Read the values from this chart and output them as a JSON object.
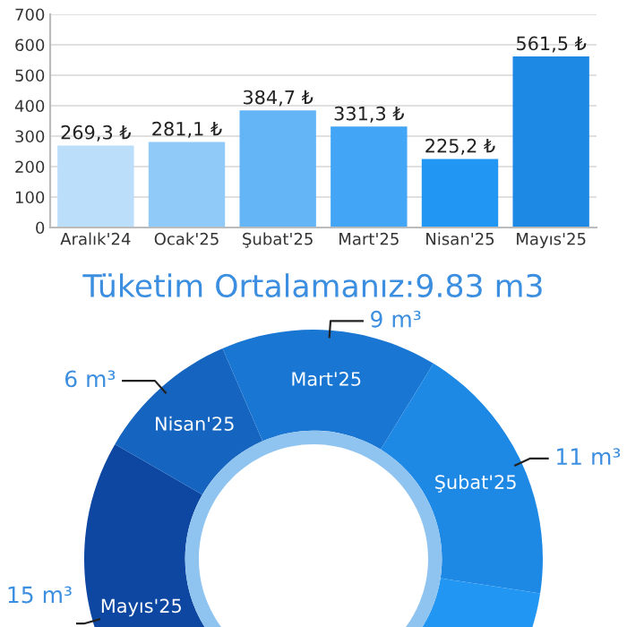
{
  "chart_data": [
    {
      "type": "bar",
      "categories": [
        "Aralık'24",
        "Ocak'25",
        "Şubat'25",
        "Mart'25",
        "Nisan'25",
        "Mayıs'25"
      ],
      "values": [
        269.3,
        281.1,
        384.7,
        331.3,
        225.2,
        561.5
      ],
      "colors": [
        "#bbdefb",
        "#90caf9",
        "#64b5f6",
        "#42a5f5",
        "#2196f3",
        "#1e88e5"
      ],
      "value_labels": [
        "269,3 ₺",
        "281,1 ₺",
        "384,7 ₺",
        "331,3 ₺",
        "225,2 ₺",
        "561,5 ₺"
      ],
      "ylim": [
        0,
        700
      ],
      "yticks": [
        0,
        100,
        200,
        300,
        400,
        500,
        600,
        700
      ],
      "grid": "y"
    },
    {
      "type": "donut",
      "title": "Tüketim Ortalamanız:9.83 m3",
      "categories": [
        "Mayıs'25",
        "Nisan'25",
        "Mart'25",
        "Şubat'25",
        null
      ],
      "values": [
        15,
        6,
        9,
        11,
        18
      ],
      "colors": [
        "#0d47a1",
        "#1565c0",
        "#1976d2",
        "#1e88e5",
        "#2196f3"
      ],
      "value_labels": [
        "15 m³",
        "6 m³",
        "9 m³",
        "11 m³",
        null
      ]
    }
  ]
}
